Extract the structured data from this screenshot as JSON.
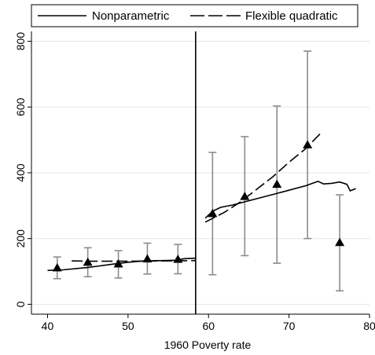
{
  "chart_data": {
    "type": "line",
    "title": "",
    "xlabel": "1960 Poverty rate",
    "ylabel": "",
    "xlim": [
      38,
      80
    ],
    "ylim": [
      -30,
      830
    ],
    "xticks": [
      40,
      50,
      60,
      70,
      80
    ],
    "yticks": [
      0,
      200,
      400,
      600,
      800
    ],
    "cutoff": 58.4,
    "grid": "horizontal",
    "legend": {
      "position": "top",
      "items": [
        "Nonparametric",
        "Flexible quadratic"
      ]
    },
    "series": [
      {
        "name": "Nonparametric",
        "style": "solid",
        "segments": [
          {
            "x": [
              40,
              42,
              45,
              48,
              50,
              52,
              54,
              56,
              57,
              58.4
            ],
            "y": [
              103,
              105,
              112,
              122,
              128,
              132,
              133,
              134,
              139,
              140
            ]
          },
          {
            "x": [
              59.6,
              60.5,
              61.5,
              63,
              65,
              68,
              70,
              72,
              73.6,
              74.3,
              75.3,
              76.3,
              77.2,
              77.6,
              78.3
            ],
            "y": [
              262,
              283,
              295,
              302,
              315,
              334,
              347,
              360,
              374,
              366,
              368,
              372,
              365,
              345,
              352
            ]
          }
        ]
      },
      {
        "name": "Flexible quadratic",
        "style": "dashed",
        "segments": [
          {
            "x": [
              43,
              45,
              50,
              55,
              58.4
            ],
            "y": [
              132,
              131,
              131,
              132,
              133
            ]
          },
          {
            "x": [
              59.6,
              62,
              64,
              66,
              68,
              70,
              72,
              74
            ],
            "y": [
              250,
              280,
              312,
              350,
              388,
              432,
              472,
              522
            ]
          }
        ]
      },
      {
        "name": "",
        "type": "errorbar",
        "points": [
          {
            "x": 41.2,
            "y": 111,
            "lo": 78,
            "hi": 144
          },
          {
            "x": 45.0,
            "y": 128,
            "lo": 84,
            "hi": 172
          },
          {
            "x": 48.8,
            "y": 123,
            "lo": 80,
            "hi": 163
          },
          {
            "x": 52.4,
            "y": 138,
            "lo": 92,
            "hi": 186
          },
          {
            "x": 56.2,
            "y": 137,
            "lo": 93,
            "hi": 182
          },
          {
            "x": 60.5,
            "y": 276,
            "lo": 90,
            "hi": 462
          },
          {
            "x": 64.5,
            "y": 328,
            "lo": 148,
            "hi": 510
          },
          {
            "x": 68.5,
            "y": 365,
            "lo": 125,
            "hi": 603
          },
          {
            "x": 72.3,
            "y": 485,
            "lo": 200,
            "hi": 770
          },
          {
            "x": 76.3,
            "y": 188,
            "lo": 41,
            "hi": 333
          }
        ]
      }
    ]
  },
  "colors": {
    "line": "#000000",
    "errorbar": "#8c8c8c",
    "grid": "#e6e6e6",
    "marker": "#000000"
  }
}
